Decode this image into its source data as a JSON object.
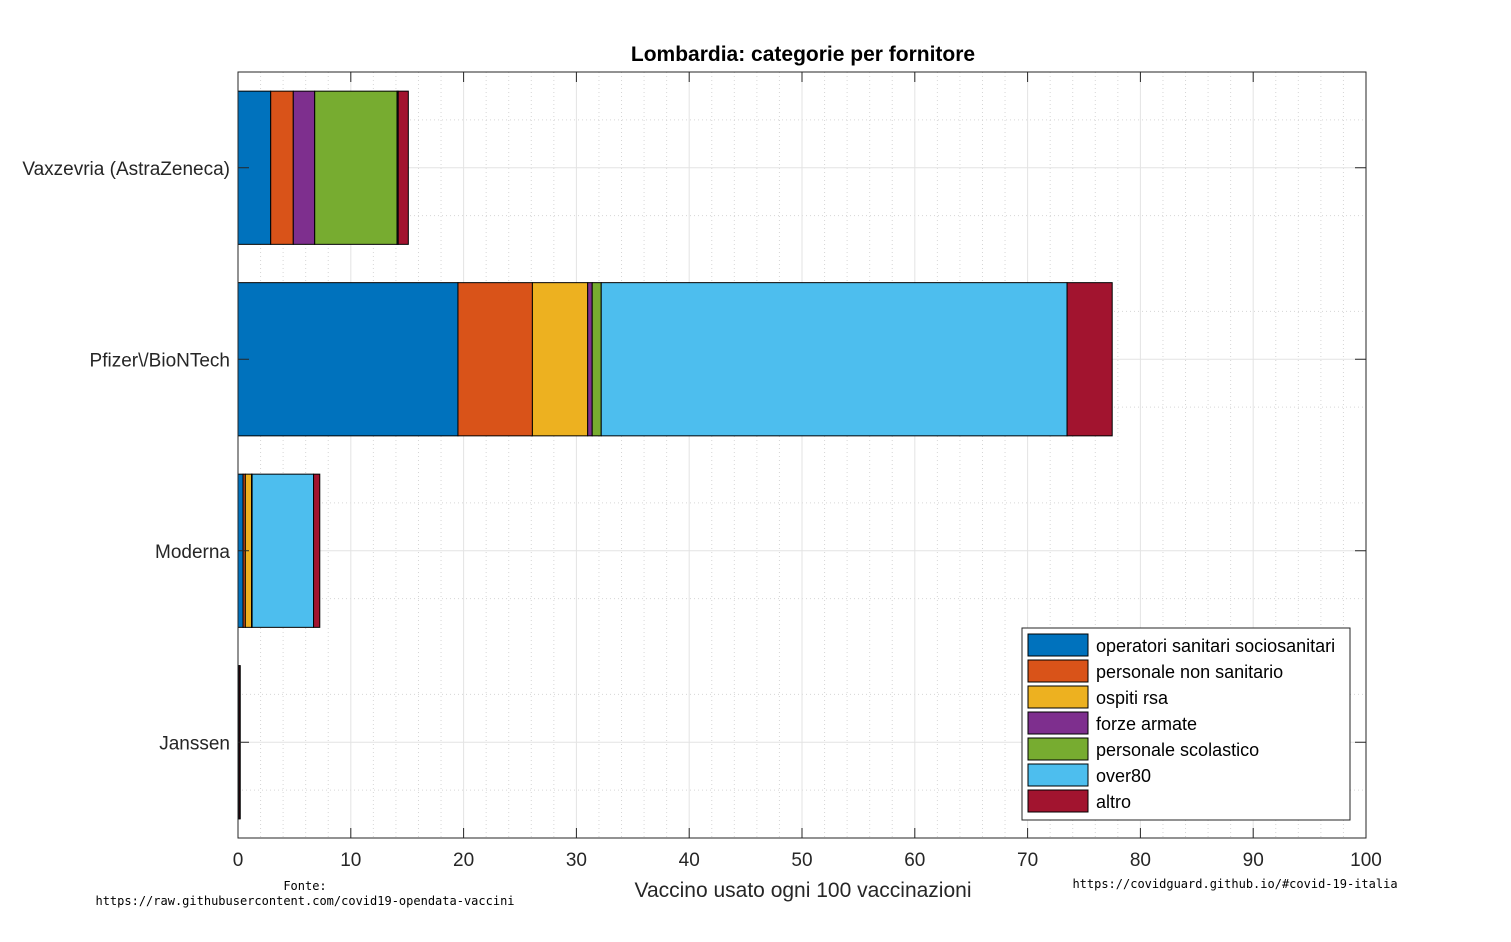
{
  "chart_data": {
    "type": "bar",
    "orientation": "horizontal",
    "stacked": true,
    "title": "Lombardia: categorie per fornitore",
    "xlabel": "Vaccino usato ogni 100 vaccinazioni",
    "ylabel": "",
    "xlim": [
      0,
      100
    ],
    "xticks": [
      0,
      10,
      20,
      30,
      40,
      50,
      60,
      70,
      80,
      90,
      100
    ],
    "grid": true,
    "minor_grid": true,
    "legend_position": "bottom-right",
    "categories": [
      "Vaxzevria (AstraZeneca)",
      "Pfizer\\/BioNTech",
      "Moderna",
      "Janssen"
    ],
    "series": [
      {
        "name": "operatori sanitari sociosanitari",
        "color": "#0072BD",
        "values": [
          2.9,
          19.5,
          0.45,
          0.1
        ]
      },
      {
        "name": "personale non sanitario",
        "color": "#D95319",
        "values": [
          2.0,
          6.6,
          0.2,
          0.0
        ]
      },
      {
        "name": "ospiti rsa",
        "color": "#EDB120",
        "values": [
          0.0,
          4.9,
          0.55,
          0.0
        ]
      },
      {
        "name": "forze armate",
        "color": "#7E2F8E",
        "values": [
          1.9,
          0.4,
          0.05,
          0.0
        ]
      },
      {
        "name": "personale scolastico",
        "color": "#77AC30",
        "values": [
          7.3,
          0.8,
          0.0,
          0.0
        ]
      },
      {
        "name": "over80",
        "color": "#4DBEEE",
        "values": [
          0.1,
          41.3,
          5.45,
          0.0
        ]
      },
      {
        "name": "altro",
        "color": "#A2142F",
        "values": [
          0.9,
          4.0,
          0.55,
          0.1
        ]
      }
    ]
  },
  "footer": {
    "source_label": "Fonte:",
    "source_url": "https://raw.githubusercontent.com/covid19-opendata-vaccini",
    "site_url": "https://covidguard.github.io/#covid-19-italia"
  }
}
